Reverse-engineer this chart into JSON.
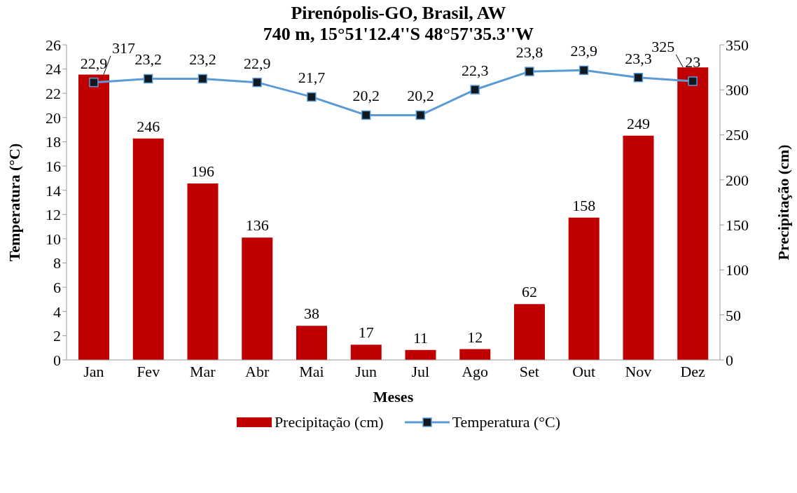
{
  "chart_data": {
    "type": "bar",
    "title": "Pirenópolis-GO, Brasil, AW",
    "subtitle": "740 m, 15°51'12.4''S 48°57'35.3''W",
    "xlabel": "Meses",
    "ylabel": "Temperatura (°C)",
    "y2label": "Precipitação (cm)",
    "categories": [
      "Jan",
      "Fev",
      "Mar",
      "Abr",
      "Mai",
      "Jun",
      "Jul",
      "Ago",
      "Set",
      "Out",
      "Nov",
      "Dez"
    ],
    "series": [
      {
        "name": "Precipitação (cm)",
        "axis": "y2",
        "color": "#c00000",
        "values": [
          317,
          246,
          196,
          136,
          38,
          17,
          11,
          12,
          62,
          158,
          249,
          325
        ],
        "value_labels": [
          "317",
          "246",
          "196",
          "136",
          "38",
          "17",
          "11",
          "12",
          "62",
          "158",
          "249",
          "325"
        ]
      },
      {
        "name": "Temperatura (°C)",
        "type": "line",
        "axis": "y",
        "color": "#5b9bd5",
        "marker": "square",
        "values": [
          22.9,
          23.2,
          23.2,
          22.9,
          21.7,
          20.2,
          20.2,
          22.3,
          23.8,
          23.9,
          23.3,
          23
        ],
        "value_labels": [
          "22,9",
          "23,2",
          "23,2",
          "22,9",
          "21,7",
          "20,2",
          "20,2",
          "22,3",
          "23,8",
          "23,9",
          "23,3",
          "23"
        ]
      }
    ],
    "ylim": [
      0,
      26
    ],
    "yticks": [
      0,
      2,
      4,
      6,
      8,
      10,
      12,
      14,
      16,
      18,
      20,
      22,
      24,
      26
    ],
    "y2lim": [
      0,
      350
    ],
    "y2ticks": [
      0,
      50,
      100,
      150,
      200,
      250,
      300,
      350
    ],
    "legend": "bottom",
    "grid": false
  }
}
